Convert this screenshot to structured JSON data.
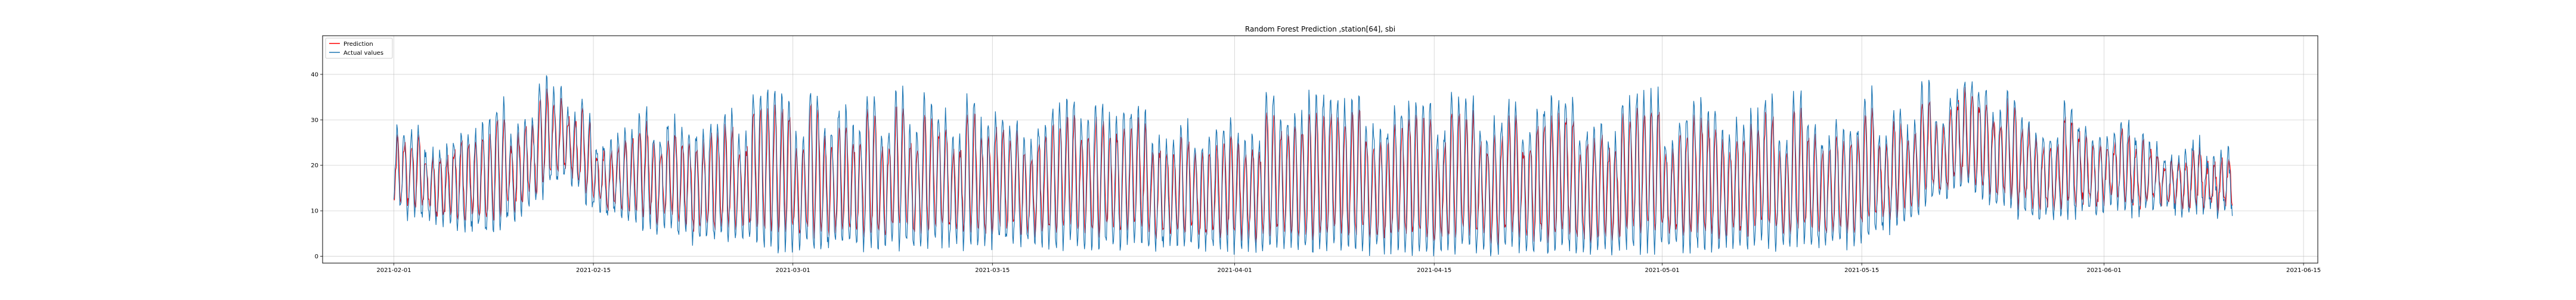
{
  "chart_data": {
    "type": "line",
    "title": "Random Forest Prediction ,station[64], sbi",
    "xlabel": "",
    "ylabel": "",
    "x_range": [
      "2021-01-27",
      "2021-06-16"
    ],
    "x_start": "2021-02-01",
    "x_end": "2021-06-10",
    "ylim": [
      -1.5,
      48.5
    ],
    "x_ticks": [
      "2021-02-01",
      "2021-02-15",
      "2021-03-01",
      "2021-03-15",
      "2021-04-01",
      "2021-04-15",
      "2021-05-01",
      "2021-05-15",
      "2021-06-01",
      "2021-06-15"
    ],
    "y_ticks": [
      0,
      10,
      20,
      30,
      40
    ],
    "grid": true,
    "legend_position": "top-left",
    "series": [
      {
        "name": "Prediction",
        "color": "#ff0000"
      },
      {
        "name": "Actual values",
        "color": "#1f77b4"
      }
    ],
    "profile": [
      {
        "date": "2021-02-01",
        "low": 10,
        "high": 28
      },
      {
        "date": "2021-02-08",
        "low": 5,
        "high": 35
      },
      {
        "date": "2021-02-13",
        "low": 18,
        "high": 40
      },
      {
        "date": "2021-02-15",
        "low": 10,
        "high": 30
      },
      {
        "date": "2021-02-22",
        "low": 4,
        "high": 34
      },
      {
        "date": "2021-03-01",
        "low": 2,
        "high": 38
      },
      {
        "date": "2021-03-15",
        "low": 3,
        "high": 35
      },
      {
        "date": "2021-04-01",
        "low": 2,
        "high": 36
      },
      {
        "date": "2021-04-15",
        "low": 1,
        "high": 37
      },
      {
        "date": "2021-05-01",
        "low": 2,
        "high": 36
      },
      {
        "date": "2021-05-15",
        "low": 3,
        "high": 36
      },
      {
        "date": "2021-05-22",
        "low": 15,
        "high": 40
      },
      {
        "date": "2021-05-27",
        "low": 8,
        "high": 35
      },
      {
        "date": "2021-06-01",
        "low": 10,
        "high": 30
      },
      {
        "date": "2021-06-10",
        "low": 10,
        "high": 25
      }
    ]
  }
}
